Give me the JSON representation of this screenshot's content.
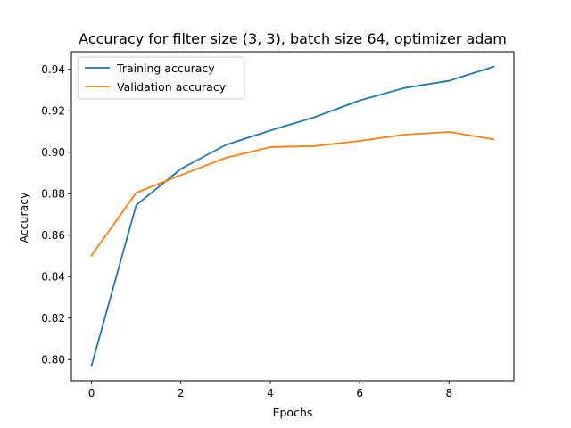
{
  "chart_data": {
    "type": "line",
    "title": "Accuracy for filter size (3, 3), batch size 64, optimizer adam",
    "xlabel": "Epochs",
    "ylabel": "Accuracy",
    "xlim": [
      -0.45,
      9.45
    ],
    "ylim": [
      0.7898,
      0.9485
    ],
    "xticks": [
      0,
      2,
      4,
      6,
      8
    ],
    "xtick_labels": [
      "0",
      "2",
      "4",
      "6",
      "8"
    ],
    "yticks": [
      0.8,
      0.82,
      0.84,
      0.86,
      0.88,
      0.9,
      0.92,
      0.94
    ],
    "ytick_labels": [
      "0.80",
      "0.82",
      "0.84",
      "0.86",
      "0.88",
      "0.90",
      "0.92",
      "0.94"
    ],
    "grid": false,
    "legend_position": "top-left",
    "x": [
      0,
      1,
      2,
      3,
      4,
      5,
      6,
      7,
      8,
      9
    ],
    "series": [
      {
        "name": "Training accuracy",
        "color": "#1f77b4",
        "values": [
          0.797,
          0.8745,
          0.892,
          0.9035,
          0.9105,
          0.917,
          0.925,
          0.931,
          0.9345,
          0.9413
        ]
      },
      {
        "name": "Validation accuracy",
        "color": "#ff7f0e",
        "values": [
          0.8502,
          0.8805,
          0.889,
          0.8973,
          0.9025,
          0.903,
          0.9055,
          0.9085,
          0.9098,
          0.9062
        ]
      }
    ]
  }
}
